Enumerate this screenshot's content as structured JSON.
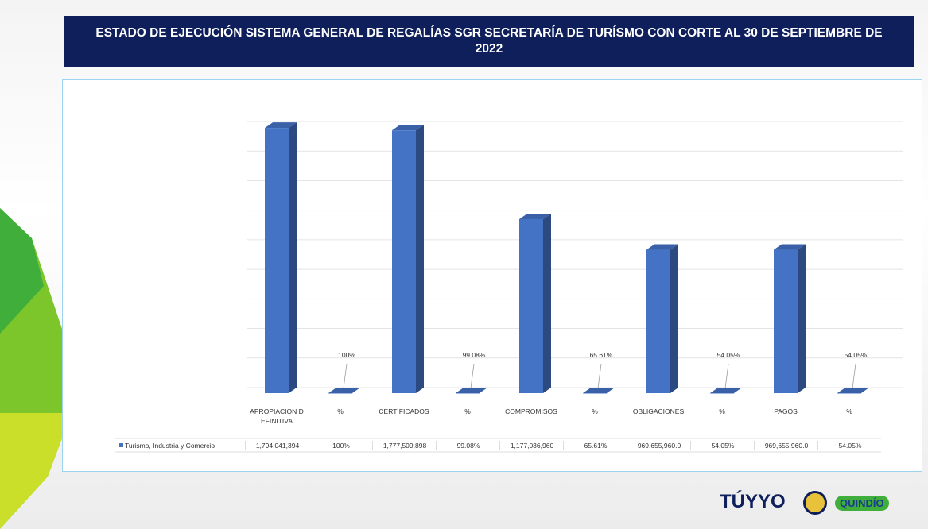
{
  "chart_data": {
    "type": "bar3d",
    "title": "ESTADO DE EJECUCIÓN SISTEMA GENERAL DE REGALÍAS SGR  SECRETARÍA DE TURÍSMO CON  CORTE AL 30 DE SEPTIEMBRE DE 2022",
    "categories": [
      "APROPIACION DEFINITIVA",
      "%",
      "CERTIFICADOS",
      "%",
      "COMPROMISOS",
      "%",
      "OBLIGACIONES",
      "%",
      "PAGOS",
      "%"
    ],
    "series": [
      {
        "name": "Turismo, Industria y Comercio",
        "color": "#4472c4",
        "values": [
          1794041394,
          100,
          1777509898,
          99.08,
          1177036960,
          65.61,
          969655960,
          54.05,
          969655960,
          54.05
        ],
        "value_labels": [
          "1,794,041,394",
          "100%",
          "1,777,509,898",
          "99.08%",
          "1,177,036,960",
          "65.61%",
          "969,655,960.0",
          "54.05%",
          "969,655,960.0",
          "54.05%"
        ]
      }
    ],
    "ylim": [
      0,
      1800000000
    ],
    "yticks": [
      0,
      200000000,
      400000000,
      600000000,
      800000000,
      1000000000,
      1200000000,
      1400000000,
      1600000000,
      1800000000
    ],
    "grid": true,
    "data_table": true
  },
  "logos": [
    "TÚYYO",
    "QUINDÍO"
  ]
}
